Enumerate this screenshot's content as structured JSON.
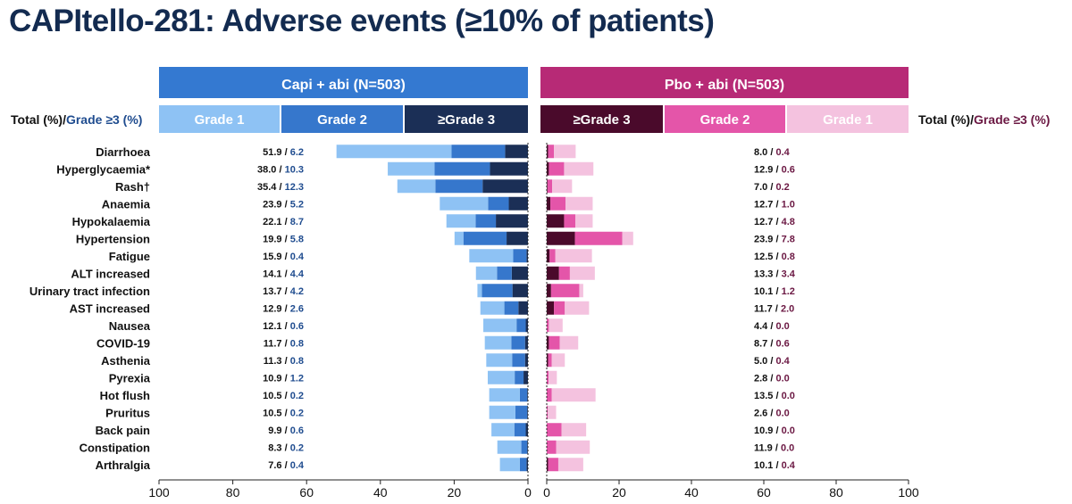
{
  "title": "CAPItello-281: Adverse events (≥10% of patients)",
  "left_arm": {
    "label": "Capi + abi (N=503)",
    "color": "#3479d1"
  },
  "right_arm": {
    "label": "Pbo + abi (N=503)",
    "color": "#b72a76"
  },
  "left_totals_header": {
    "total": "Total (%)/",
    "grade3": "Grade ≥3 (%)"
  },
  "right_totals_header": {
    "total": "Total (%)/",
    "grade3": "Grade ≥3 (%)"
  },
  "legend_left": [
    {
      "label": "Grade 1",
      "color": "#8ec2f4"
    },
    {
      "label": "Grade 2",
      "color": "#3677cc"
    },
    {
      "label": "≥Grade 3",
      "color": "#1b2f56"
    }
  ],
  "legend_right": [
    {
      "label": "≥Grade 3",
      "color": "#4a0a2b"
    },
    {
      "label": "Grade 2",
      "color": "#e455a9"
    },
    {
      "label": "Grade 1",
      "color": "#f4c2df"
    }
  ],
  "chart_data": {
    "type": "bar",
    "orientation": "horizontal-butterfly",
    "categories": [
      "Diarrhoea",
      "Hyperglycaemia*",
      "Rash†",
      "Anaemia",
      "Hypokalaemia",
      "Hypertension",
      "Fatigue",
      "ALT increased",
      "Urinary tract infection",
      "AST increased",
      "Nausea",
      "COVID-19",
      "Asthenia",
      "Pyrexia",
      "Hot flush",
      "Pruritus",
      "Back pain",
      "Constipation",
      "Arthralgia"
    ],
    "capi_total": [
      51.9,
      38.0,
      35.4,
      23.9,
      22.1,
      19.9,
      15.9,
      14.1,
      13.7,
      12.9,
      12.1,
      11.7,
      11.3,
      10.9,
      10.5,
      10.5,
      9.9,
      8.3,
      7.6
    ],
    "capi_grade3": [
      6.2,
      10.3,
      12.3,
      5.2,
      8.7,
      5.8,
      0.4,
      4.4,
      4.2,
      2.6,
      0.6,
      0.8,
      0.8,
      1.2,
      0.2,
      0.2,
      0.6,
      0.2,
      0.4
    ],
    "capi_grade2": [
      14.5,
      15.0,
      12.8,
      5.6,
      5.5,
      11.7,
      3.6,
      4.0,
      8.3,
      3.8,
      2.5,
      3.7,
      3.5,
      2.4,
      2.0,
      3.2,
      3.1,
      1.6,
      1.8
    ],
    "pbo_total": [
      8.0,
      12.9,
      7.0,
      12.7,
      12.7,
      23.9,
      12.5,
      13.3,
      10.1,
      11.7,
      4.4,
      8.7,
      5.0,
      2.8,
      13.5,
      2.6,
      10.9,
      11.9,
      10.1
    ],
    "pbo_grade3": [
      0.4,
      0.6,
      0.2,
      1.0,
      4.8,
      7.8,
      0.8,
      3.4,
      1.2,
      2.0,
      0.0,
      0.6,
      0.4,
      0.0,
      0.0,
      0.0,
      0.0,
      0.0,
      0.4
    ],
    "pbo_grade2": [
      1.6,
      4.2,
      1.3,
      4.2,
      3.1,
      13.1,
      1.6,
      3.0,
      7.8,
      3.0,
      0.6,
      3.0,
      1.0,
      0.5,
      1.4,
      0.3,
      4.1,
      2.6,
      2.8
    ],
    "x_ticks_left": [
      "100",
      "80",
      "60",
      "40",
      "20",
      "0"
    ],
    "x_ticks_right": [
      "0",
      "20",
      "40",
      "60",
      "80",
      "100"
    ],
    "xlim": [
      0,
      100
    ]
  }
}
